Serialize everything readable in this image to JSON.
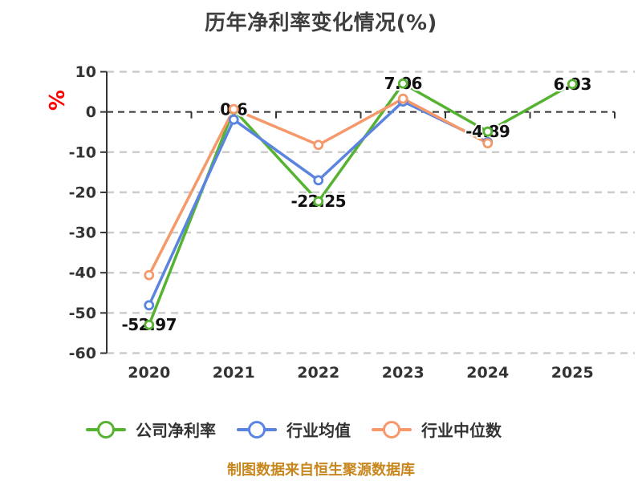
{
  "title": "历年净利率变化情况(%)",
  "y_axis_unit": "%",
  "footer": "制图数据来自恒生聚源数据库",
  "palette": {
    "grid": "#cccccc",
    "axis": "#333333",
    "tick_label": "#333333",
    "data_label": "#111111",
    "title": "#3f3f3f",
    "unit": "#ff0000",
    "footer": "#c8871e"
  },
  "chart_data": {
    "type": "line",
    "title": "历年净利率变化情况(%)",
    "categories": [
      "2020",
      "2021",
      "2022",
      "2023",
      "2024",
      "2025"
    ],
    "series": [
      {
        "key": "company-net-margin",
        "name": "公司净利率",
        "color": "#55b331",
        "values": [
          -52.97,
          0.6,
          -22.25,
          7.06,
          -4.89,
          6.93
        ]
      },
      {
        "key": "industry-mean",
        "name": "行业均值",
        "color": "#5b83e0",
        "values": [
          -48.1,
          -1.9,
          -17.0,
          2.6,
          -7.5,
          null
        ]
      },
      {
        "key": "industry-median",
        "name": "行业中位数",
        "color": "#f5996b",
        "values": [
          -40.6,
          0.7,
          -8.2,
          3.3,
          -7.8,
          null
        ]
      }
    ],
    "point_labels": [
      "-52.97",
      "0.6",
      "-22.25",
      "7.06",
      "-4.89",
      "6.93"
    ],
    "labeled_series": "公司净利率",
    "ylim": [
      -60,
      10
    ],
    "yticks": [
      10,
      0,
      -10,
      -20,
      -30,
      -40,
      -50,
      -60
    ],
    "ylabel_unit": "%",
    "grid": "dashed",
    "legend_position": "bottom"
  }
}
